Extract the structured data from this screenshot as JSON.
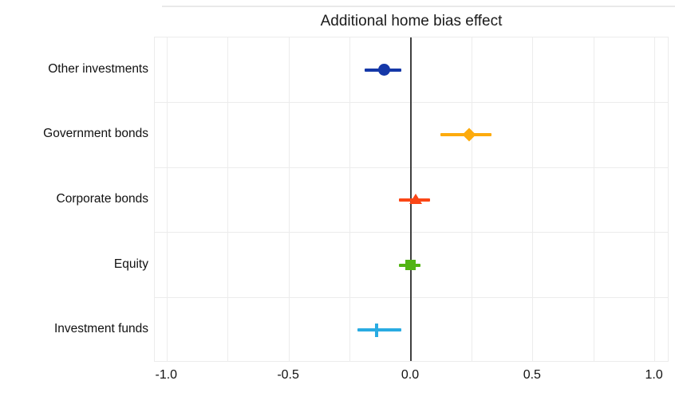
{
  "title": "Additional home bias effect",
  "chart_data": {
    "type": "scatter",
    "subtype": "horizontal-errorbar-forest-plot",
    "title": "Additional home bias effect",
    "xlabel": "",
    "ylabel": "",
    "categories": [
      "Other investments",
      "Government bonds",
      "Corporate bonds",
      "Equity",
      "Investment funds"
    ],
    "series": [
      {
        "name": "Other investments",
        "estimate": -0.11,
        "ci_low": -0.19,
        "ci_high": -0.04,
        "marker": "circle",
        "color": "#1538a8"
      },
      {
        "name": "Government bonds",
        "estimate": 0.24,
        "ci_low": 0.12,
        "ci_high": 0.33,
        "marker": "diamond",
        "color": "#fdab0d"
      },
      {
        "name": "Corporate bonds",
        "estimate": 0.02,
        "ci_low": -0.05,
        "ci_high": 0.08,
        "marker": "triangle",
        "color": "#fa4616"
      },
      {
        "name": "Equity",
        "estimate": 0.0,
        "ci_low": -0.05,
        "ci_high": 0.04,
        "marker": "square",
        "color": "#52b414"
      },
      {
        "name": "Investment funds",
        "estimate": -0.14,
        "ci_low": -0.22,
        "ci_high": -0.04,
        "marker": "plus",
        "color": "#29abe2"
      }
    ],
    "x_ticks": [
      -1.0,
      -0.5,
      0.0,
      0.5,
      1.0
    ],
    "x_tick_labels": [
      "-1.0",
      "-0.5",
      "0.0",
      "0.5",
      "1.0"
    ],
    "x_minor_step": 0.25,
    "xlim": [
      -1.05,
      1.06
    ],
    "zero_reference_line": 0.0,
    "grid": true,
    "legend_position": "none"
  },
  "colors": {
    "grid": "#ececec",
    "zero_line": "#404040",
    "text": "#111111",
    "title_text": "#1a1a1a",
    "background": "#ffffff",
    "top_rule": "#e9e9e9"
  }
}
